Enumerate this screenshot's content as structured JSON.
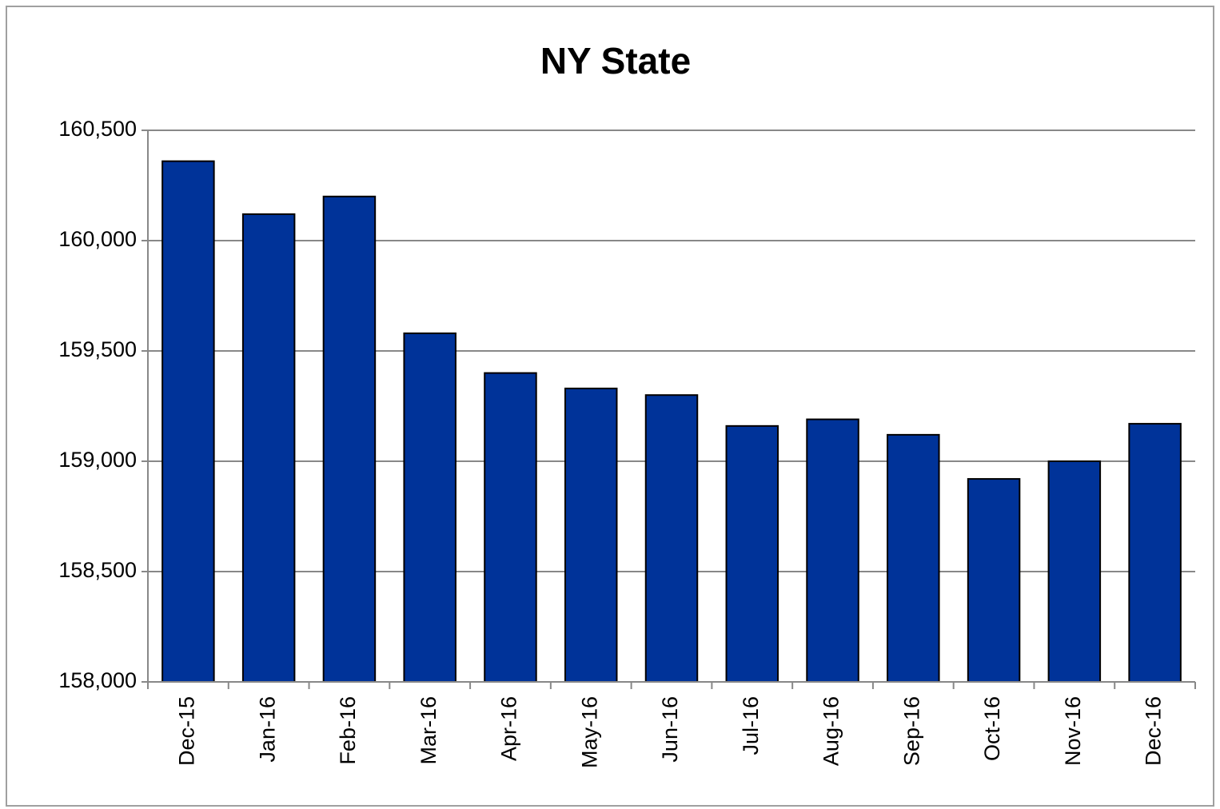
{
  "chart_data": {
    "type": "bar",
    "title": "NY State",
    "categories": [
      "Dec-15",
      "Jan-16",
      "Feb-16",
      "Mar-16",
      "Apr-16",
      "May-16",
      "Jun-16",
      "Jul-16",
      "Aug-16",
      "Sep-16",
      "Oct-16",
      "Nov-16",
      "Dec-16"
    ],
    "values": [
      160360,
      160120,
      160200,
      159580,
      159400,
      159330,
      159300,
      159160,
      159190,
      159120,
      158920,
      159000,
      159170
    ],
    "color": "#003399",
    "ylim": [
      158000,
      160500
    ],
    "yticks": [
      {
        "value": 158000,
        "label": "158,000"
      },
      {
        "value": 158500,
        "label": "158,500"
      },
      {
        "value": 159000,
        "label": "159,000"
      },
      {
        "value": 159500,
        "label": "159,500"
      },
      {
        "value": 160000,
        "label": "160,000"
      },
      {
        "value": 160500,
        "label": "160,500"
      }
    ],
    "grid": true
  }
}
